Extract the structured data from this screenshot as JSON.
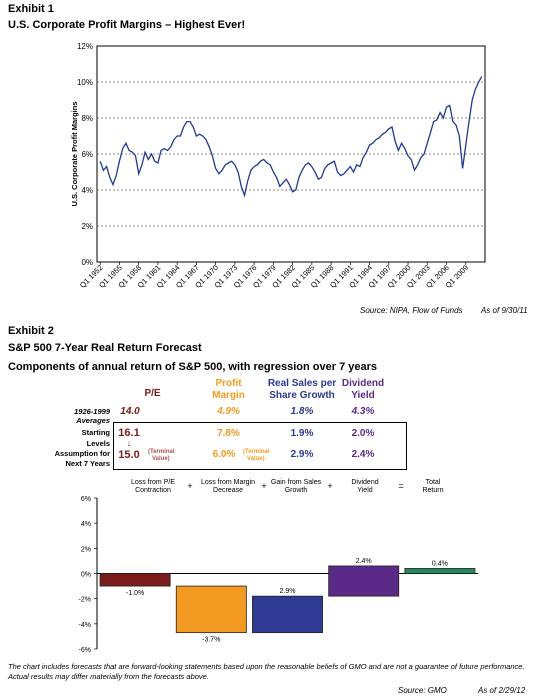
{
  "exhibit1": {
    "label": "Exhibit 1",
    "title": "U.S. Corporate Profit Margins – Highest Ever!",
    "source": "Source:  NIPA, Flow of Funds",
    "asof": "As of 9/30/11"
  },
  "exhibit2": {
    "label": "Exhibit 2",
    "title": "S&P 500 7-Year Real Return Forecast",
    "subtitle": "Components of annual return of S&P 500, with regression over 7 years",
    "table": {
      "headers": {
        "pe": "P/E",
        "profit_margin_1": "Profit",
        "profit_margin_2": "Margin",
        "sales_1": "Real Sales per",
        "sales_2": "Share Growth",
        "div_1": "Dividend",
        "div_2": "Yield"
      },
      "rows": [
        {
          "label1": "1926-1999",
          "label2": "Averages",
          "pe": "14.0",
          "margin": "4.9%",
          "sales": "1.8%",
          "div": "4.3%"
        },
        {
          "label1": "Starting",
          "label2": "Levels",
          "pe": "16.1",
          "margin": "7.8%",
          "sales": "1.9%",
          "div": "2.0%"
        },
        {
          "label1": "Assumption for",
          "label2": "Next 7 Years",
          "pe": "15.0",
          "margin": "6.0%",
          "sales": "2.9%",
          "div": "2.4%"
        }
      ],
      "terminal_note_1": "(Terminal",
      "terminal_note_2": "Value)",
      "arrow": "↓"
    },
    "components": {
      "c1": "Loss from P/E Contraction",
      "c2": "Loss from Margin Decrease",
      "c3": "Gain from Sales Growth",
      "c4": "Dividend Yield",
      "c5": "Total Return",
      "plus": "+",
      "equals": "="
    },
    "footnote": "The chart includes forecasts that are forward-looking statements based upon the reasonable beliefs of GMO and are not a guarantee of future performance.  Actual results may differ materially from the forecasts above.",
    "source": "Source:  GMO",
    "asof": "As of 2/29/12"
  },
  "chart_data": [
    {
      "type": "line",
      "title": "",
      "xlabel": "",
      "ylabel": "U.S. Corporate Profit Margins",
      "ylim": [
        0,
        12
      ],
      "yticks": [
        "0%",
        "2%",
        "4%",
        "6%",
        "8%",
        "10%",
        "12%"
      ],
      "grid": true,
      "x_tick_labels": [
        "Q1 1952",
        "Q1 1955",
        "Q1 1958",
        "Q1 1961",
        "Q1 1964",
        "Q1 1967",
        "Q1 1970",
        "Q1 1973",
        "Q1 1976",
        "Q1 1979",
        "Q1 1982",
        "Q1 1985",
        "Q1 1988",
        "Q1 1991",
        "Q1 1994",
        "Q1 1997",
        "Q1 2000",
        "Q1 2003",
        "Q1 2006",
        "Q1 2009"
      ],
      "series": [
        {
          "color": "#1f3a93",
          "points": [
            [
              1952.0,
              5.6
            ],
            [
              1952.5,
              5.1
            ],
            [
              1953.0,
              5.3
            ],
            [
              1953.5,
              4.7
            ],
            [
              1954.0,
              4.3
            ],
            [
              1954.5,
              4.8
            ],
            [
              1955.0,
              5.6
            ],
            [
              1955.5,
              6.3
            ],
            [
              1956.0,
              6.6
            ],
            [
              1956.5,
              6.2
            ],
            [
              1957.0,
              6.1
            ],
            [
              1957.5,
              5.9
            ],
            [
              1958.0,
              4.9
            ],
            [
              1958.5,
              5.4
            ],
            [
              1959.0,
              6.1
            ],
            [
              1959.5,
              5.7
            ],
            [
              1960.0,
              6.0
            ],
            [
              1960.5,
              5.6
            ],
            [
              1961.0,
              5.5
            ],
            [
              1961.5,
              6.2
            ],
            [
              1962.0,
              6.3
            ],
            [
              1962.5,
              6.2
            ],
            [
              1963.0,
              6.4
            ],
            [
              1963.5,
              6.8
            ],
            [
              1964.0,
              7.0
            ],
            [
              1964.5,
              7.0
            ],
            [
              1965.0,
              7.5
            ],
            [
              1965.5,
              7.8
            ],
            [
              1966.0,
              7.8
            ],
            [
              1966.5,
              7.5
            ],
            [
              1967.0,
              7.0
            ],
            [
              1967.5,
              7.1
            ],
            [
              1968.0,
              7.0
            ],
            [
              1968.5,
              6.8
            ],
            [
              1969.0,
              6.4
            ],
            [
              1969.5,
              5.9
            ],
            [
              1970.0,
              5.2
            ],
            [
              1970.5,
              4.9
            ],
            [
              1971.0,
              5.1
            ],
            [
              1971.5,
              5.4
            ],
            [
              1972.0,
              5.5
            ],
            [
              1972.5,
              5.6
            ],
            [
              1973.0,
              5.4
            ],
            [
              1973.5,
              5.0
            ],
            [
              1974.0,
              4.2
            ],
            [
              1974.5,
              3.7
            ],
            [
              1975.0,
              4.5
            ],
            [
              1975.5,
              5.1
            ],
            [
              1976.0,
              5.3
            ],
            [
              1976.5,
              5.4
            ],
            [
              1977.0,
              5.6
            ],
            [
              1977.5,
              5.7
            ],
            [
              1978.0,
              5.5
            ],
            [
              1978.5,
              5.4
            ],
            [
              1979.0,
              5.0
            ],
            [
              1979.5,
              4.7
            ],
            [
              1980.0,
              4.2
            ],
            [
              1980.5,
              4.4
            ],
            [
              1981.0,
              4.6
            ],
            [
              1981.5,
              4.3
            ],
            [
              1982.0,
              3.9
            ],
            [
              1982.5,
              4.0
            ],
            [
              1983.0,
              4.7
            ],
            [
              1983.5,
              5.1
            ],
            [
              1984.0,
              5.4
            ],
            [
              1984.5,
              5.5
            ],
            [
              1985.0,
              5.3
            ],
            [
              1985.5,
              5.0
            ],
            [
              1986.0,
              4.6
            ],
            [
              1986.5,
              4.7
            ],
            [
              1987.0,
              5.2
            ],
            [
              1987.5,
              5.4
            ],
            [
              1988.0,
              5.5
            ],
            [
              1988.5,
              5.6
            ],
            [
              1989.0,
              5.0
            ],
            [
              1989.5,
              4.8
            ],
            [
              1990.0,
              4.9
            ],
            [
              1990.5,
              5.1
            ],
            [
              1991.0,
              5.3
            ],
            [
              1991.5,
              5.0
            ],
            [
              1992.0,
              5.4
            ],
            [
              1992.5,
              5.3
            ],
            [
              1993.0,
              5.8
            ],
            [
              1993.5,
              6.1
            ],
            [
              1994.0,
              6.5
            ],
            [
              1994.5,
              6.6
            ],
            [
              1995.0,
              6.8
            ],
            [
              1995.5,
              6.9
            ],
            [
              1996.0,
              7.1
            ],
            [
              1996.5,
              7.2
            ],
            [
              1997.0,
              7.4
            ],
            [
              1997.5,
              7.5
            ],
            [
              1998.0,
              6.7
            ],
            [
              1998.5,
              6.2
            ],
            [
              1999.0,
              6.6
            ],
            [
              1999.5,
              6.3
            ],
            [
              2000.0,
              5.9
            ],
            [
              2000.5,
              5.7
            ],
            [
              2001.0,
              5.1
            ],
            [
              2001.5,
              5.4
            ],
            [
              2002.0,
              5.8
            ],
            [
              2002.5,
              6.0
            ],
            [
              2003.0,
              6.6
            ],
            [
              2003.5,
              7.2
            ],
            [
              2004.0,
              7.8
            ],
            [
              2004.5,
              7.9
            ],
            [
              2005.0,
              8.3
            ],
            [
              2005.5,
              8.0
            ],
            [
              2006.0,
              8.6
            ],
            [
              2006.5,
              8.7
            ],
            [
              2007.0,
              7.8
            ],
            [
              2007.5,
              7.6
            ],
            [
              2008.0,
              7.0
            ],
            [
              2008.5,
              5.2
            ],
            [
              2009.0,
              6.5
            ],
            [
              2009.5,
              7.8
            ],
            [
              2010.0,
              9.0
            ],
            [
              2010.5,
              9.6
            ],
            [
              2011.0,
              10.0
            ],
            [
              2011.5,
              10.3
            ]
          ]
        }
      ]
    },
    {
      "type": "bar",
      "title": "",
      "ylim": [
        -6,
        6
      ],
      "yticks": [
        "-6%",
        "-4%",
        "-2%",
        "0%",
        "2%",
        "4%",
        "6%"
      ],
      "grid": false,
      "categories": [
        "Loss from P/E Contraction",
        "Loss from Margin Decrease",
        "Gain from Sales Growth",
        "Dividend Yield",
        "Total Return"
      ],
      "values": [
        -1.0,
        -3.7,
        2.9,
        2.4,
        0.4
      ],
      "value_labels": [
        "-1.0%",
        "-3.7%",
        "2.9%",
        "2.4%",
        "0.4%"
      ],
      "colors": [
        "#7b1c1c",
        "#f39a23",
        "#2e3a93",
        "#5b2a86",
        "#1e8a5a"
      ],
      "bar_type": "waterfall"
    }
  ]
}
